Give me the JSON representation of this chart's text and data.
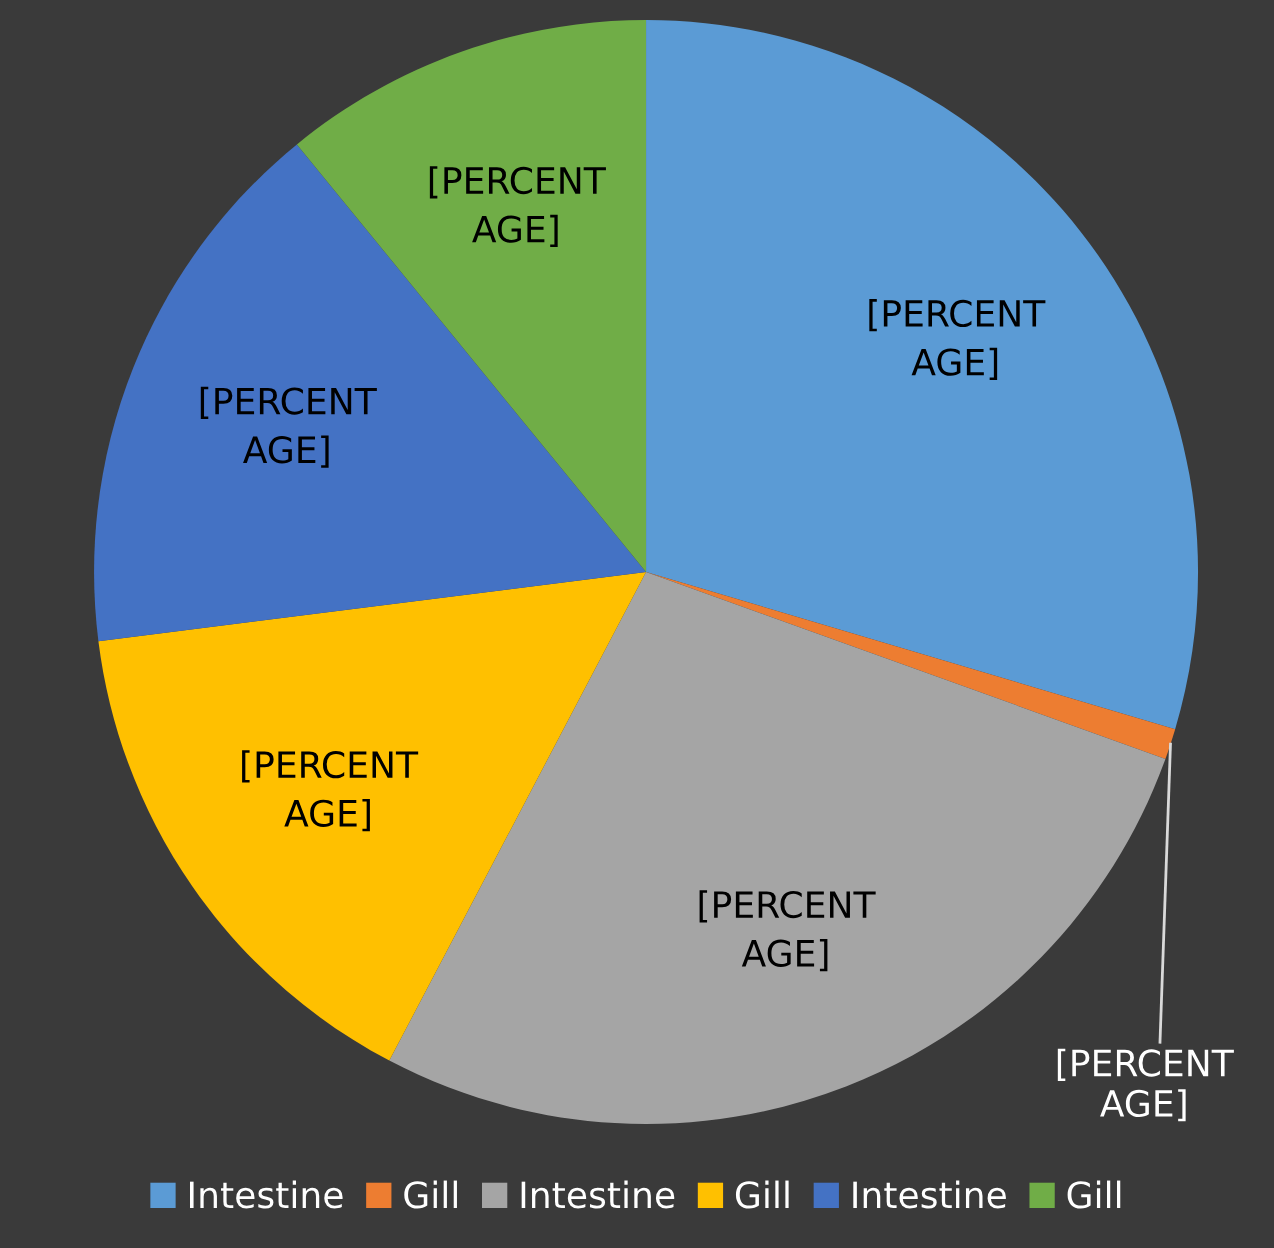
{
  "chart_data": {
    "type": "pie",
    "categories": [
      "Intestine",
      "Gill",
      "Intestine",
      "Gill",
      "Intestine",
      "Gill"
    ],
    "values": [
      29.6,
      0.9,
      27.2,
      15.3,
      16.1,
      10.9
    ],
    "colors": [
      "#5b9bd5",
      "#ed7d31",
      "#a5a5a5",
      "#ffc000",
      "#4472c4",
      "#70ad47"
    ],
    "value_labels": [
      "[PERCENT\nAGE]",
      "[PERCENT\nAGE]",
      "[PERCENT\nAGE]",
      "[PERCENT\nAGE]",
      "[PERCENT\nAGE]",
      "[PERCENT\nAGE]"
    ],
    "legend": "bottom"
  }
}
